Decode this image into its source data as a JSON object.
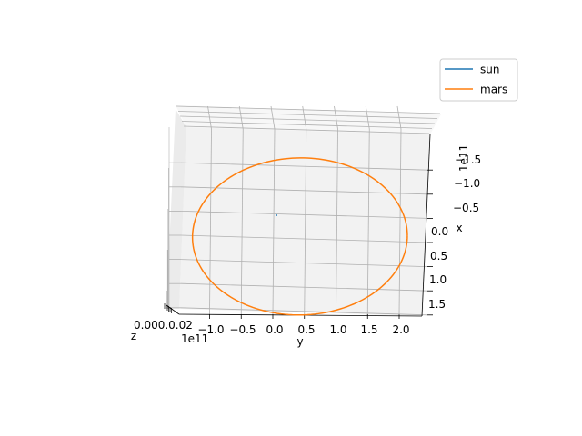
{
  "chart_data": {
    "type": "line",
    "projection": "3d",
    "series": [
      {
        "name": "sun",
        "color": "#1f77b4",
        "x": [
          0
        ],
        "y": [
          0
        ],
        "z": [
          0
        ]
      },
      {
        "name": "mars",
        "color": "#ff7f0e",
        "orbit": {
          "x_range": [
            -160000000000.0,
            165000000000.0
          ],
          "y_range": [
            -130000000000.0,
            210000000000.0
          ]
        }
      }
    ],
    "legend_placement": "top-right",
    "grid": true,
    "axes": {
      "x": {
        "label": "x",
        "offset_label": "1e11",
        "ticks": [
          "−1.5",
          "−1.0",
          "−0.5",
          "0.0",
          "0.5",
          "1.0",
          "1.5"
        ]
      },
      "y": {
        "label": "y",
        "offset_label": "1e11",
        "ticks": [
          "−1.0",
          "−0.5",
          "0.0",
          "0.5",
          "1.0",
          "1.5",
          "2.0"
        ]
      },
      "z": {
        "label": "z",
        "ticks_text": "0.000.0.02"
      }
    }
  }
}
